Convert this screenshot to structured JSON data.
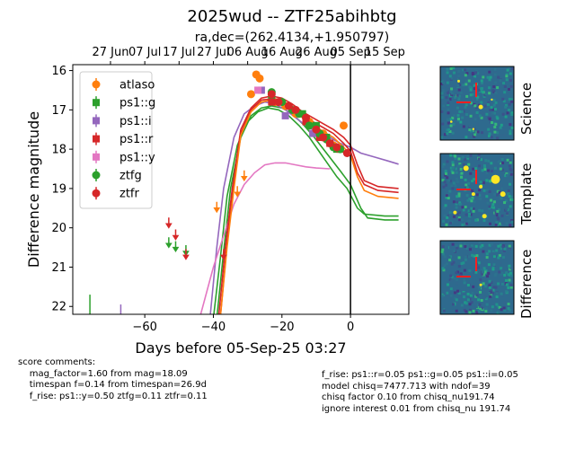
{
  "header": {
    "title": "2025wud -- ZTF25abihbtg",
    "subtitle": "ra,dec=(262.4134,+1.950797)"
  },
  "chart_data": {
    "type": "scatter",
    "xlabel": "Days before 05-Sep-25 03:27",
    "ylabel": "Difference magnitude",
    "xlim": [
      -81,
      17
    ],
    "ylim": [
      22.2,
      15.85
    ],
    "x_ticks": [
      -60,
      -40,
      -20,
      0
    ],
    "y_ticks": [
      16,
      17,
      18,
      19,
      20,
      21,
      22
    ],
    "top_axis_ticks": [
      {
        "x": -70,
        "label": "27 Jun"
      },
      {
        "x": -60,
        "label": "07 Jul"
      },
      {
        "x": -50,
        "label": "17 Jul"
      },
      {
        "x": -40,
        "label": "27 Jul"
      },
      {
        "x": -30,
        "label": "06 Aug"
      },
      {
        "x": -20,
        "label": "16 Aug"
      },
      {
        "x": -10,
        "label": "26 Aug"
      },
      {
        "x": 0,
        "label": "05 Sep"
      },
      {
        "x": 10,
        "label": "15 Sep"
      }
    ],
    "vline_x": 0,
    "legend_position": "upper-left",
    "series": [
      {
        "name": "atlaso",
        "color": "#ff7f0e",
        "marker": "circle",
        "points": [
          [
            -29,
            16.6
          ],
          [
            -27.5,
            16.1
          ],
          [
            -26.5,
            16.2
          ],
          [
            -22,
            16.8
          ],
          [
            -19,
            16.9
          ],
          [
            -16,
            17.1
          ],
          [
            -12,
            17.3
          ],
          [
            -8,
            17.6
          ],
          [
            -5,
            17.9
          ],
          [
            -2,
            17.4
          ]
        ],
        "limits": [
          [
            -39,
            19.5
          ],
          [
            -33,
            19.1
          ],
          [
            -31,
            18.7
          ]
        ]
      },
      {
        "name": "ps1::g",
        "color": "#2ca02c",
        "marker": "square",
        "points": [
          [
            -23,
            16.7
          ],
          [
            -14,
            17.1
          ],
          [
            -10,
            17.4
          ],
          [
            -7,
            17.7
          ],
          [
            -4,
            18.0
          ]
        ],
        "limits": []
      },
      {
        "name": "ps1::i",
        "color": "#9467bd",
        "marker": "square",
        "points": [
          [
            -26,
            16.5
          ],
          [
            -19,
            17.15
          ],
          [
            -11,
            17.6
          ]
        ],
        "limits": []
      },
      {
        "name": "ps1::r",
        "color": "#d62728",
        "marker": "square",
        "points": [
          [
            -23,
            16.8
          ],
          [
            -13,
            17.3
          ],
          [
            -9,
            17.7
          ],
          [
            -6,
            17.85
          ],
          [
            -3,
            18.0
          ]
        ],
        "limits": []
      },
      {
        "name": "ps1::y",
        "color": "#e377c2",
        "marker": "square",
        "points": [
          [
            -27,
            16.5
          ]
        ],
        "limits": []
      },
      {
        "name": "ztfg",
        "color": "#2ca02c",
        "marker": "circle",
        "points": [
          [
            -23,
            16.55
          ],
          [
            -20,
            16.8
          ],
          [
            -17,
            17.0
          ],
          [
            -15,
            17.1
          ],
          [
            -12,
            17.4
          ],
          [
            -9,
            17.6
          ],
          [
            -7,
            17.75
          ],
          [
            -5,
            17.95
          ],
          [
            -3,
            18.0
          ]
        ],
        "limits": [
          [
            -53,
            20.4
          ],
          [
            -51,
            20.5
          ],
          [
            -48,
            20.6
          ]
        ]
      },
      {
        "name": "ztfr",
        "color": "#d62728",
        "marker": "circle",
        "points": [
          [
            -23,
            16.6
          ],
          [
            -21,
            16.8
          ],
          [
            -18,
            16.9
          ],
          [
            -16,
            17.0
          ],
          [
            -13,
            17.2
          ],
          [
            -10,
            17.5
          ],
          [
            -8,
            17.7
          ],
          [
            -6,
            17.85
          ],
          [
            -4,
            17.95
          ],
          [
            -1,
            18.1
          ]
        ],
        "limits": [
          [
            -53,
            19.9
          ],
          [
            -51,
            20.2
          ],
          [
            -48,
            20.7
          ],
          [
            -37,
            20.7
          ]
        ]
      }
    ],
    "model_curves": [
      {
        "color": "#2ca02c",
        "points": [
          [
            -40,
            22.3
          ],
          [
            -38,
            20.8
          ],
          [
            -36,
            19.2
          ],
          [
            -33,
            17.9
          ],
          [
            -30,
            17.3
          ],
          [
            -27,
            17.05
          ],
          [
            -24,
            16.95
          ],
          [
            -21,
            17.0
          ],
          [
            -18,
            17.15
          ],
          [
            -15,
            17.4
          ],
          [
            -12,
            17.7
          ],
          [
            -8,
            18.2
          ],
          [
            -4,
            18.7
          ],
          [
            -1,
            19.0
          ],
          [
            2,
            19.5
          ],
          [
            4,
            19.65
          ],
          [
            10,
            19.7
          ],
          [
            14,
            19.7
          ]
        ]
      },
      {
        "color": "#2ca02c",
        "points": [
          [
            -39,
            22.3
          ],
          [
            -37,
            20.6
          ],
          [
            -35,
            19.0
          ],
          [
            -32,
            17.7
          ],
          [
            -29,
            17.15
          ],
          [
            -26,
            16.95
          ],
          [
            -23,
            16.9
          ],
          [
            -20,
            16.95
          ],
          [
            -17,
            17.1
          ],
          [
            -14,
            17.35
          ],
          [
            -11,
            17.65
          ],
          [
            -7,
            18.1
          ],
          [
            -3,
            18.55
          ],
          [
            0,
            18.9
          ],
          [
            3,
            19.5
          ],
          [
            5,
            19.75
          ],
          [
            10,
            19.8
          ],
          [
            14,
            19.8
          ]
        ]
      },
      {
        "color": "#9467bd",
        "points": [
          [
            -41,
            22.3
          ],
          [
            -39,
            20.5
          ],
          [
            -37,
            19.0
          ],
          [
            -34,
            17.7
          ],
          [
            -31,
            17.1
          ],
          [
            -28,
            16.9
          ],
          [
            -25,
            16.8
          ],
          [
            -22,
            16.85
          ],
          [
            -19,
            17.0
          ],
          [
            -16,
            17.2
          ],
          [
            -13,
            17.4
          ],
          [
            -10,
            17.55
          ],
          [
            -6,
            17.7
          ],
          [
            -3,
            17.85
          ],
          [
            0,
            17.95
          ],
          [
            3,
            18.1
          ],
          [
            7,
            18.2
          ],
          [
            11,
            18.3
          ],
          [
            14,
            18.38
          ]
        ]
      },
      {
        "color": "#e377c2",
        "points": [
          [
            -44,
            22.3
          ],
          [
            -40,
            21.0
          ],
          [
            -37,
            20.2
          ],
          [
            -34,
            19.4
          ],
          [
            -31,
            18.9
          ],
          [
            -28,
            18.6
          ],
          [
            -25,
            18.4
          ],
          [
            -22,
            18.35
          ],
          [
            -19,
            18.35
          ],
          [
            -16,
            18.4
          ],
          [
            -13,
            18.45
          ],
          [
            -10,
            18.48
          ],
          [
            -6,
            18.5
          ]
        ]
      },
      {
        "color": "#d62728",
        "points": [
          [
            -38,
            22.3
          ],
          [
            -36,
            20.4
          ],
          [
            -34,
            18.9
          ],
          [
            -32,
            17.6
          ],
          [
            -29,
            17.0
          ],
          [
            -26,
            16.75
          ],
          [
            -23,
            16.72
          ],
          [
            -20,
            16.78
          ],
          [
            -17,
            16.95
          ],
          [
            -14,
            17.15
          ],
          [
            -11,
            17.3
          ],
          [
            -8,
            17.45
          ],
          [
            -5,
            17.6
          ],
          [
            -2,
            17.85
          ],
          [
            0,
            18.05
          ],
          [
            2,
            18.6
          ],
          [
            4,
            18.9
          ],
          [
            8,
            19.05
          ],
          [
            14,
            19.1
          ]
        ]
      },
      {
        "color": "#d62728",
        "points": [
          [
            -38.5,
            22.3
          ],
          [
            -36.5,
            20.5
          ],
          [
            -34.5,
            19.0
          ],
          [
            -32,
            17.5
          ],
          [
            -29,
            16.95
          ],
          [
            -26,
            16.7
          ],
          [
            -23,
            16.65
          ],
          [
            -20,
            16.7
          ],
          [
            -17,
            16.85
          ],
          [
            -14,
            17.05
          ],
          [
            -11,
            17.2
          ],
          [
            -8,
            17.35
          ],
          [
            -5,
            17.5
          ],
          [
            -2,
            17.7
          ],
          [
            0,
            17.9
          ],
          [
            2,
            18.4
          ],
          [
            4,
            18.8
          ],
          [
            8,
            18.95
          ],
          [
            14,
            19.0
          ]
        ]
      },
      {
        "color": "#ff7f0e",
        "points": [
          [
            -38,
            22.3
          ],
          [
            -36,
            20.5
          ],
          [
            -34,
            19.0
          ],
          [
            -32,
            17.65
          ],
          [
            -29,
            17.05
          ],
          [
            -26,
            16.8
          ],
          [
            -23,
            16.75
          ],
          [
            -20,
            16.8
          ],
          [
            -17,
            16.98
          ],
          [
            -14,
            17.2
          ],
          [
            -11,
            17.38
          ],
          [
            -8,
            17.55
          ],
          [
            -5,
            17.7
          ],
          [
            -2,
            17.95
          ],
          [
            0,
            18.15
          ],
          [
            2,
            18.7
          ],
          [
            4,
            19.05
          ],
          [
            8,
            19.2
          ],
          [
            14,
            19.25
          ]
        ]
      }
    ],
    "edge_limits": [
      {
        "x": -76,
        "y_top": 21.7,
        "color": "#2ca02c"
      },
      {
        "x": -67,
        "y_top": 21.95,
        "color": "#9467bd"
      }
    ]
  },
  "thumbnails": [
    {
      "label": "Science"
    },
    {
      "label": "Template"
    },
    {
      "label": "Difference"
    }
  ],
  "comments": {
    "left": "score comments:\n    mag_factor=1.60 from mag=18.09\n    timespan f=0.14 from timespan=26.9d\n    f_rise: ps1::y=0.50 ztfg=0.11 ztfr=0.11",
    "right": "f_rise: ps1::r=0.05 ps1::g=0.05 ps1::i=0.05\nmodel chisq=7477.713 with ndof=39\nchisq factor 0.10 from chisq_nu191.74\nignore interest 0.01 from chisq_nu 191.74"
  }
}
